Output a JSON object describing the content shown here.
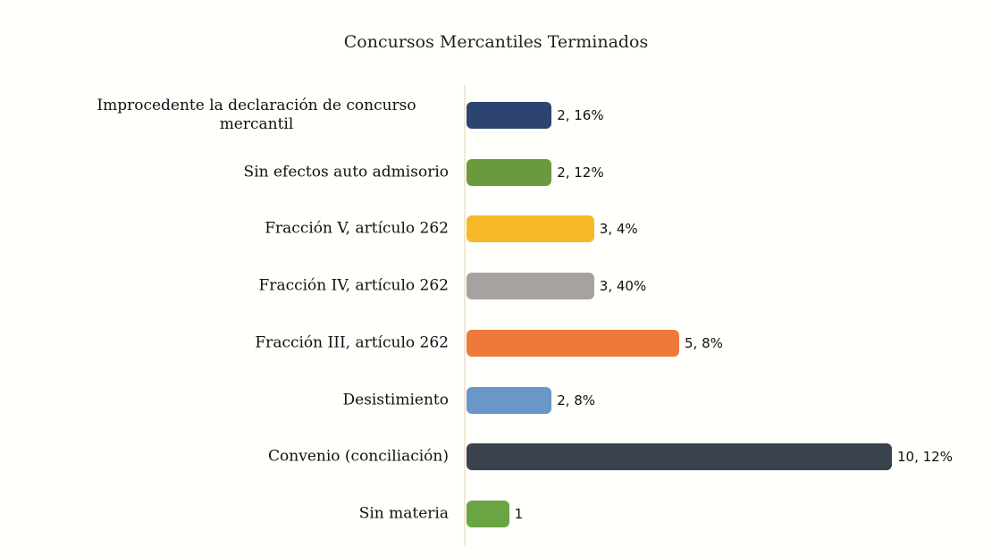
{
  "chart_data": {
    "type": "bar",
    "orientation": "horizontal",
    "title": "Concursos Mercantiles Terminados",
    "categories": [
      "Improcedente la declaración de concurso mercantil",
      "Sin efectos auto admisorio",
      "Fracción V, artículo 262",
      "Fracción IV, artículo 262",
      "Fracción III, artículo 262",
      "Desistimiento",
      "Convenio (conciliación)",
      "Sin materia"
    ],
    "values": [
      2,
      2,
      3,
      3,
      5,
      2,
      10,
      1
    ],
    "value_labels": [
      "2, 16%",
      "2, 12%",
      "3, 4%",
      "3, 40%",
      "5, 8%",
      "2, 8%",
      "10, 12%",
      "1"
    ],
    "colors": [
      "#2e4470",
      "#6a9a3c",
      "#f7b92a",
      "#a7a29f",
      "#ee7a3a",
      "#6a96c8",
      "#3a424d",
      "#6aa443"
    ]
  }
}
